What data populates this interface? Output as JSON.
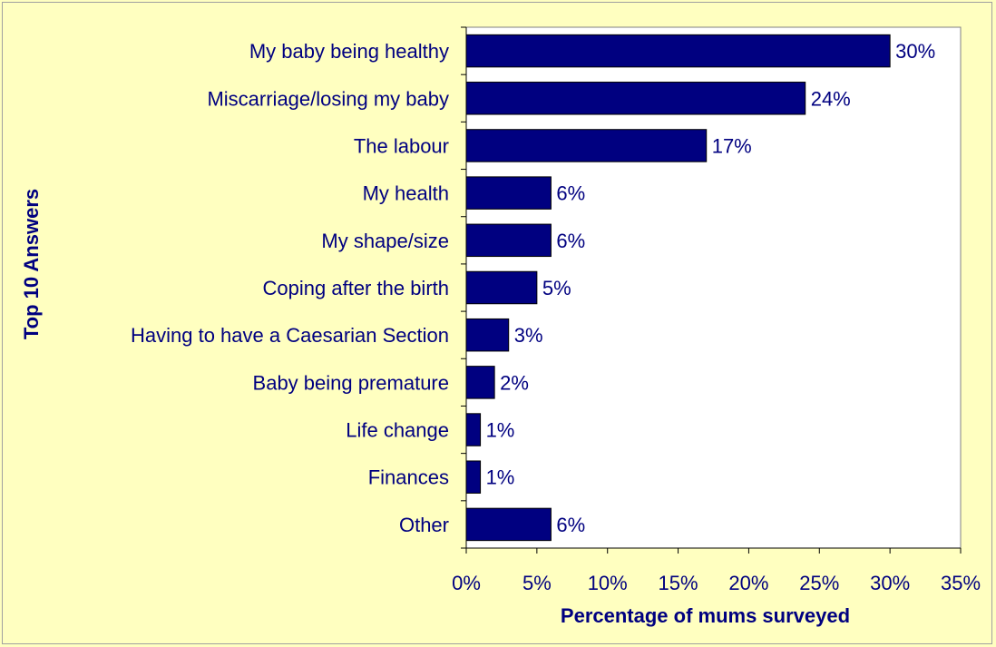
{
  "chart_data": {
    "type": "bar",
    "orientation": "horizontal",
    "title": "",
    "xlabel": "Percentage of mums surveyed",
    "ylabel": "Top 10 Answers",
    "categories": [
      "My baby being healthy",
      "Miscarriage/losing my baby",
      "The labour",
      "My health",
      "My shape/size",
      "Coping after the birth",
      "Having to have a Caesarian Section",
      "Baby being premature",
      "Life change",
      "Finances",
      "Other"
    ],
    "values": [
      30,
      24,
      17,
      6,
      6,
      5,
      3,
      2,
      1,
      1,
      6
    ],
    "data_labels": [
      "30%",
      "24%",
      "17%",
      "6%",
      "6%",
      "5%",
      "3%",
      "2%",
      "1%",
      "1%",
      "6%"
    ],
    "x_ticks": [
      0,
      5,
      10,
      15,
      20,
      25,
      30,
      35
    ],
    "x_tick_labels": [
      "0%",
      "5%",
      "10%",
      "15%",
      "20%",
      "25%",
      "30%",
      "35%"
    ],
    "xlim": [
      0,
      35
    ],
    "grid": false,
    "legend": "none",
    "colors": {
      "bar": "#000080",
      "text": "#000080",
      "background": "#ffffc0",
      "plot_area": "#ffffff"
    }
  }
}
